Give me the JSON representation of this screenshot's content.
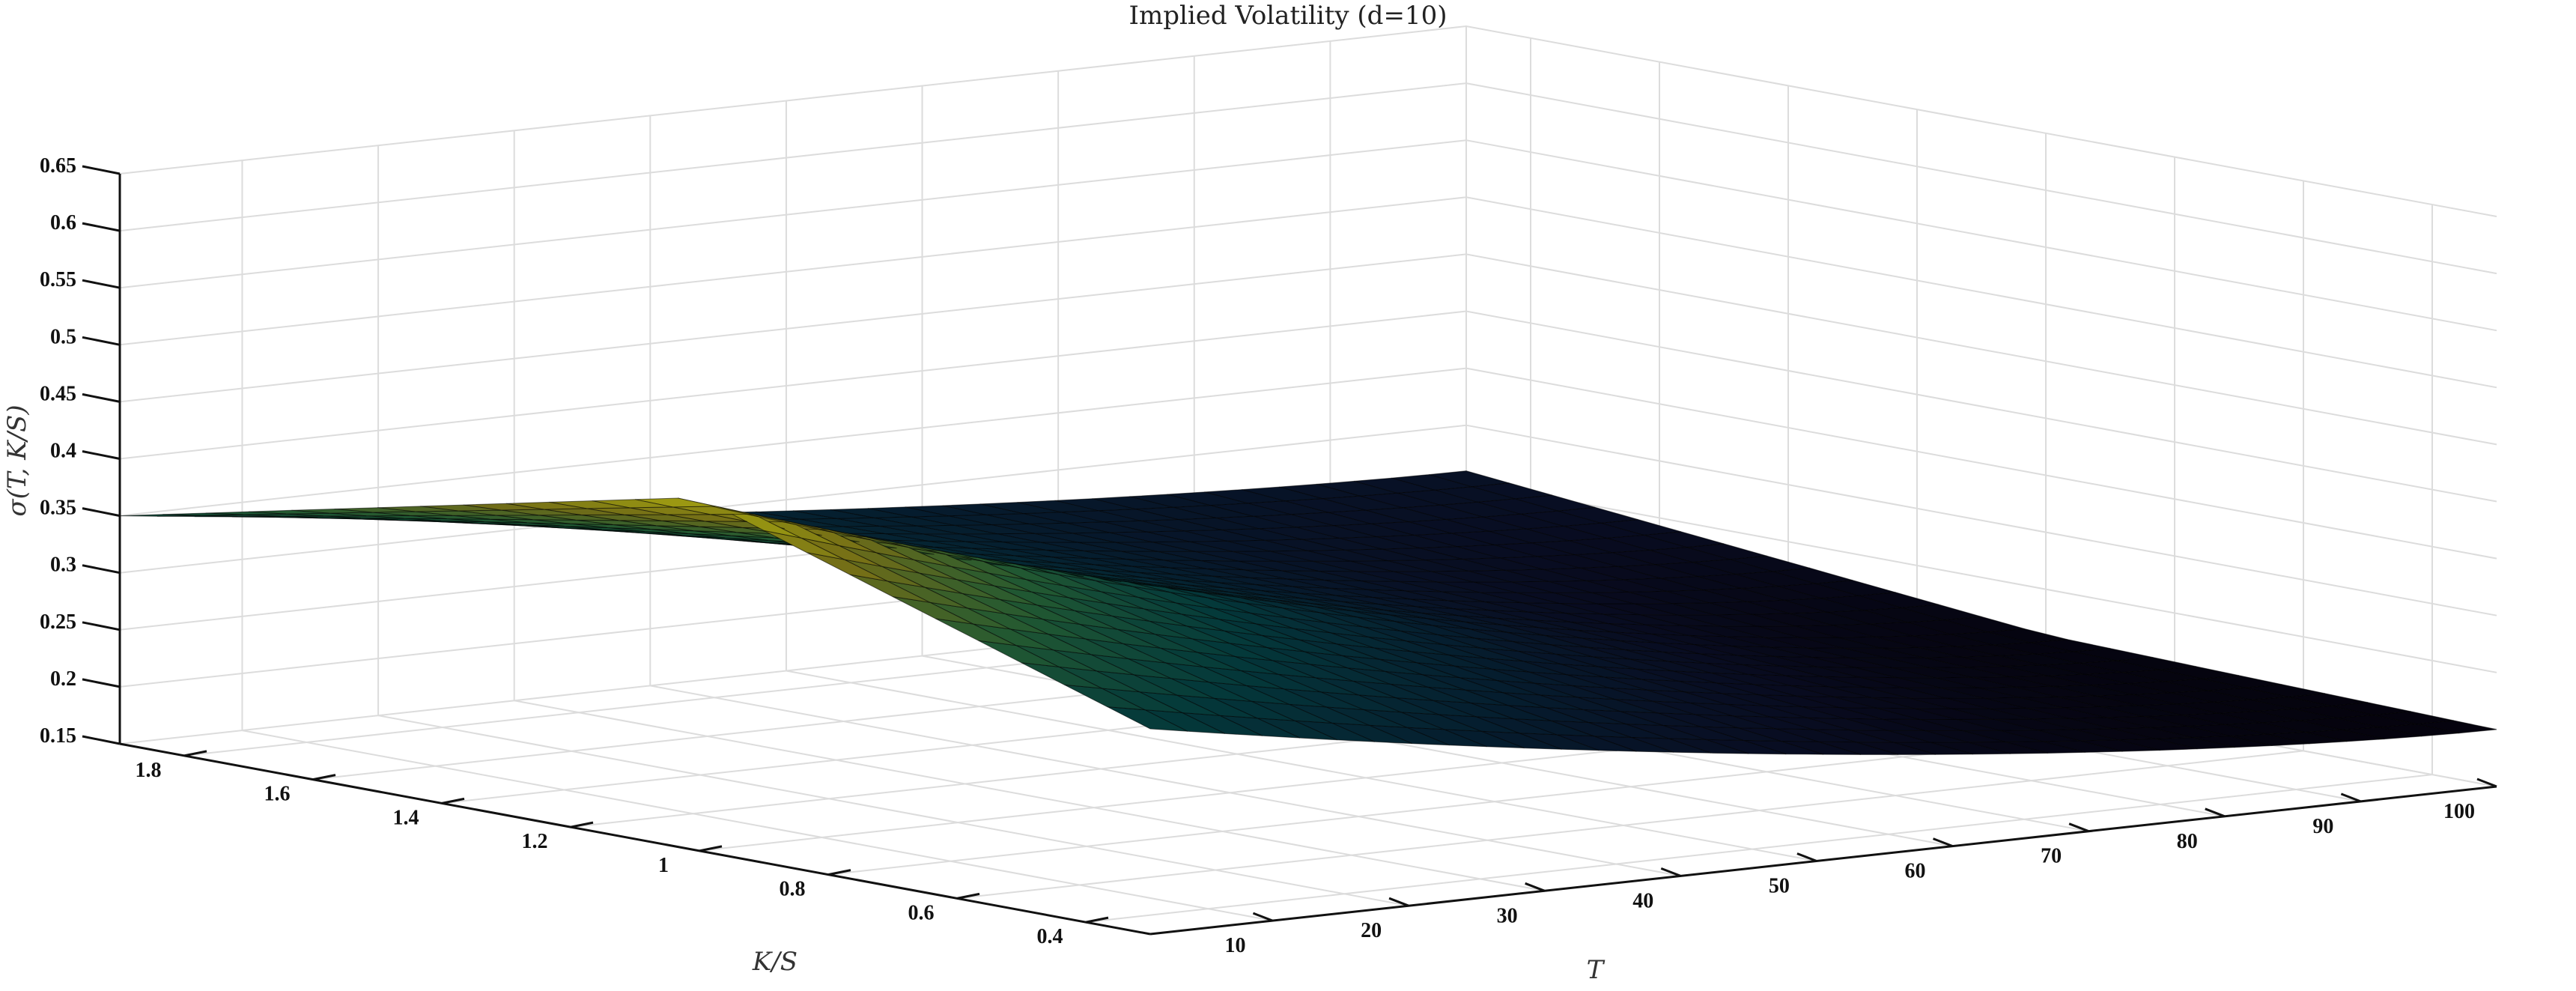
{
  "chart_data": {
    "type": "surface",
    "title": "Implied Volatility (d=10)",
    "xlabel": "T",
    "ylabel": "K/S",
    "zlabel": "σ(T, K/S)",
    "x_ticks": [
      "10",
      "20",
      "30",
      "40",
      "50",
      "60",
      "70",
      "80",
      "90",
      "100"
    ],
    "y_ticks": [
      "0.4",
      "0.6",
      "0.8",
      "1",
      "1.2",
      "1.4",
      "1.6",
      "1.8"
    ],
    "z_ticks": [
      "0.15",
      "0.2",
      "0.25",
      "0.3",
      "0.35",
      "0.4",
      "0.45",
      "0.5",
      "0.55",
      "0.6",
      "0.65"
    ],
    "xlim": [
      1,
      100
    ],
    "ylim": [
      0.3,
      1.9
    ],
    "zlim": [
      0.15,
      0.65
    ],
    "grid": true,
    "colormap": "parula",
    "surface_samples": [
      {
        "T": 1,
        "K/S": 0.3,
        "sigma": 0.33
      },
      {
        "T": 1,
        "K/S": 1.0,
        "sigma": 0.46
      },
      {
        "T": 1,
        "K/S": 1.9,
        "sigma": 0.35
      },
      {
        "T": 100,
        "K/S": 0.3,
        "sigma": 0.2
      },
      {
        "T": 100,
        "K/S": 1.0,
        "sigma": 0.21
      },
      {
        "T": 100,
        "K/S": 1.9,
        "sigma": 0.26
      }
    ]
  }
}
